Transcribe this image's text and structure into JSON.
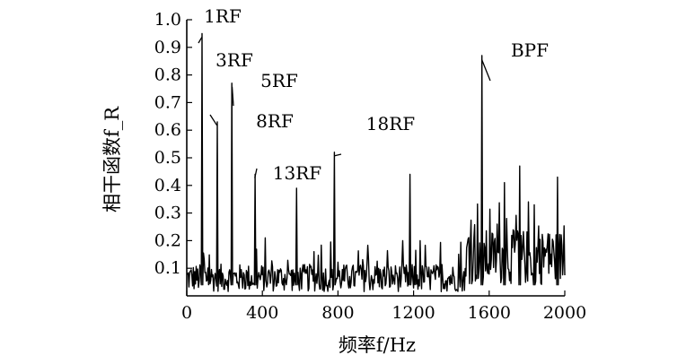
{
  "chart_data": {
    "type": "line",
    "xlabel": "频率f/Hz",
    "ylabel": "相干函数f_R",
    "xlim": [
      0,
      2000
    ],
    "ylim": [
      0,
      1.0
    ],
    "x_ticks": [
      "0",
      "400",
      "800",
      "1200",
      "1600",
      "2000"
    ],
    "y_ticks": [
      "0.1",
      "0.2",
      "0.3",
      "0.4",
      "0.5",
      "0.6",
      "0.7",
      "0.8",
      "0.9",
      "1.0"
    ],
    "grid": false,
    "peaks": [
      {
        "x": 80,
        "y": 0.95
      },
      {
        "x": 160,
        "y": 0.63
      },
      {
        "x": 240,
        "y": 0.77
      },
      {
        "x": 360,
        "y": 0.44
      },
      {
        "x": 580,
        "y": 0.39
      },
      {
        "x": 780,
        "y": 0.52
      },
      {
        "x": 1180,
        "y": 0.44
      },
      {
        "x": 1560,
        "y": 0.87
      },
      {
        "x": 1680,
        "y": 0.41
      },
      {
        "x": 1760,
        "y": 0.47
      },
      {
        "x": 1840,
        "y": 0.33
      },
      {
        "x": 1960,
        "y": 0.43
      }
    ],
    "annotations": [
      {
        "text": "1RF",
        "x": 80,
        "y": 0.95
      },
      {
        "text": "3RF",
        "x": 160,
        "y": 0.63
      },
      {
        "text": "5RF",
        "x": 240,
        "y": 0.77
      },
      {
        "text": "8RF",
        "x": 360,
        "y": 0.44
      },
      {
        "text": "13RF",
        "x": 580,
        "y": 0.39
      },
      {
        "text": "18RF",
        "x": 780,
        "y": 0.52
      },
      {
        "text": "BPF",
        "x": 1560,
        "y": 0.87
      }
    ]
  }
}
